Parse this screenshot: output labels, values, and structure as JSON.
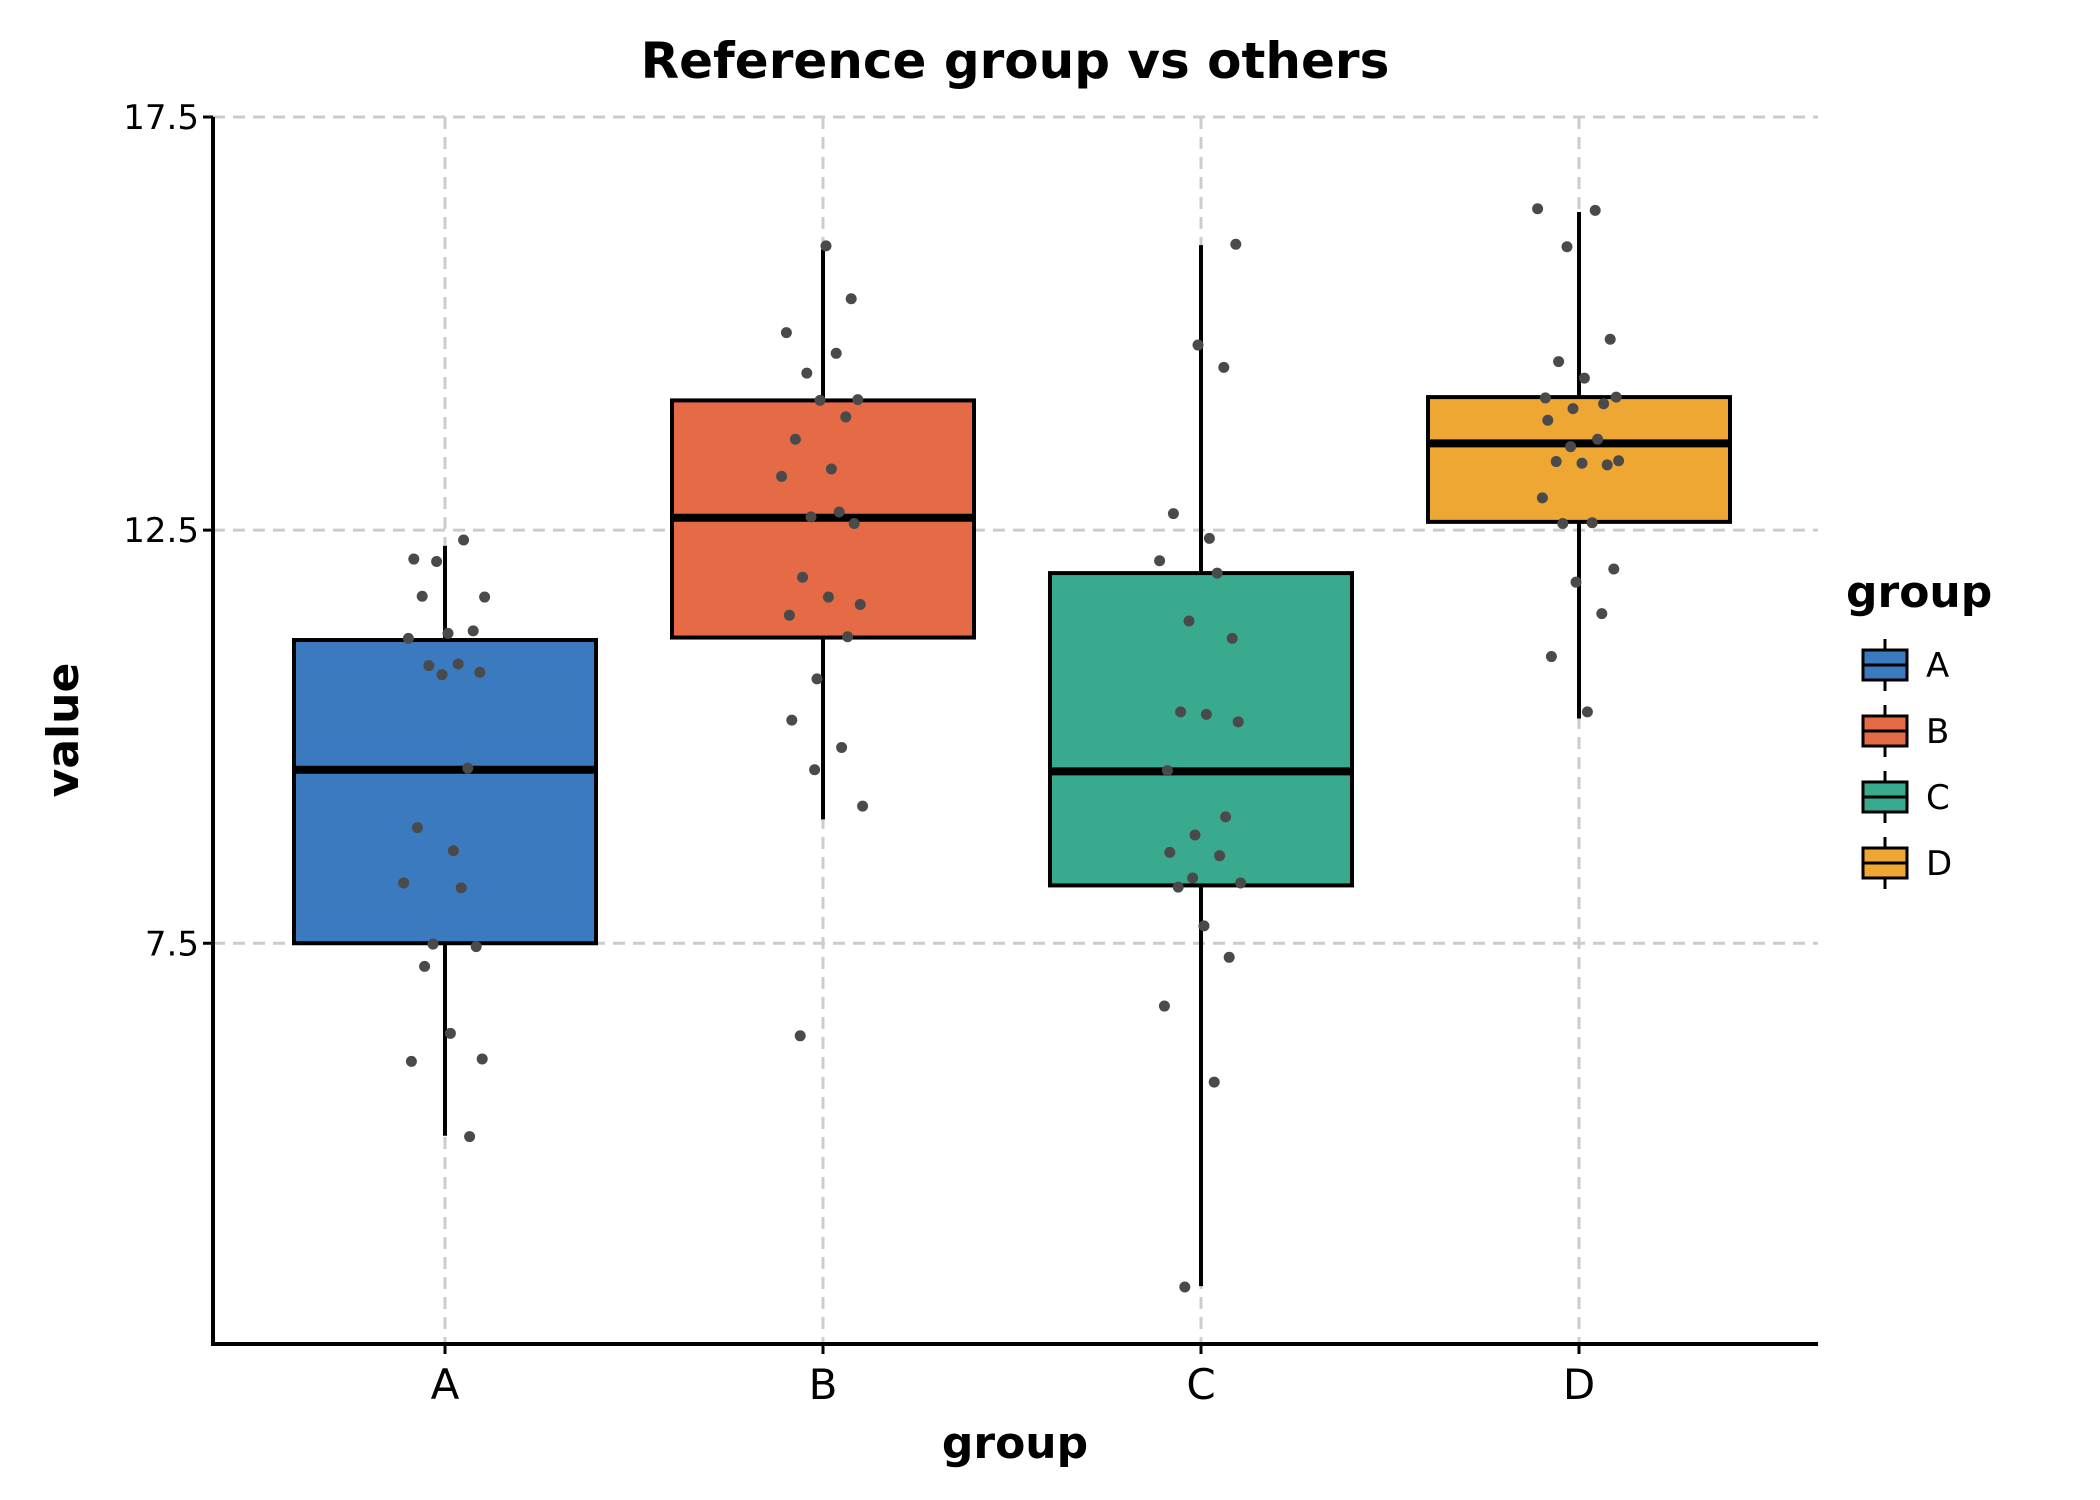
{
  "chart_data": {
    "type": "box",
    "title": "Reference group vs others",
    "xlabel": "group",
    "ylabel": "value",
    "ylim": [
      2.65,
      17.5
    ],
    "yticks": [
      "7.5",
      "12.5",
      "17.5"
    ],
    "grid": true,
    "legend": {
      "title": "group",
      "position": "right"
    },
    "categories": [
      "A",
      "B",
      "C",
      "D"
    ],
    "colors": {
      "A": "#3b7abf",
      "B": "#e56b46",
      "C": "#3aaa8f",
      "D": "#efa734"
    },
    "boxes": [
      {
        "name": "A",
        "whisker_low": 5.17,
        "q1": 7.5,
        "median": 9.6,
        "q3": 11.17,
        "whisker_high": 12.31
      },
      {
        "name": "B",
        "whisker_low": 9.0,
        "q1": 11.2,
        "median": 12.65,
        "q3": 14.07,
        "whisker_high": 15.9
      },
      {
        "name": "C",
        "whisker_low": 3.35,
        "q1": 8.2,
        "median": 9.58,
        "q3": 11.98,
        "whisker_high": 15.95
      },
      {
        "name": "D",
        "whisker_low": 10.22,
        "q1": 12.6,
        "median": 13.55,
        "q3": 14.11,
        "whisker_high": 16.35
      }
    ],
    "points": [
      {
        "group": "A",
        "values": [
          12.15,
          12.38,
          12.12,
          11.69,
          11.7,
          11.25,
          11.28,
          11.19,
          10.88,
          10.86,
          10.78,
          10.75,
          9.62,
          8.9,
          8.62,
          8.23,
          8.17,
          7.49,
          7.46,
          7.22,
          6.41,
          6.1,
          6.07,
          5.16
        ]
      },
      {
        "group": "B",
        "values": [
          15.94,
          15.3,
          14.89,
          14.64,
          14.4,
          14.08,
          14.07,
          13.87,
          13.6,
          13.24,
          13.15,
          12.72,
          12.66,
          12.58,
          11.93,
          11.69,
          11.6,
          11.47,
          11.21,
          10.7,
          10.2,
          9.87,
          9.6,
          9.16,
          6.38
        ]
      },
      {
        "group": "C",
        "values": [
          15.96,
          14.74,
          14.47,
          12.7,
          12.4,
          12.13,
          11.98,
          11.4,
          11.19,
          10.3,
          10.27,
          10.18,
          9.59,
          9.03,
          8.81,
          8.6,
          8.56,
          8.29,
          8.23,
          8.18,
          7.71,
          7.33,
          6.74,
          5.82,
          3.34
        ]
      },
      {
        "group": "D",
        "values": [
          16.39,
          16.37,
          15.93,
          14.81,
          14.54,
          14.34,
          14.11,
          14.1,
          14.03,
          13.97,
          13.83,
          13.6,
          13.51,
          13.34,
          13.33,
          13.31,
          13.29,
          12.89,
          12.59,
          12.58,
          12.03,
          11.87,
          11.49,
          10.97,
          10.3
        ]
      }
    ]
  }
}
